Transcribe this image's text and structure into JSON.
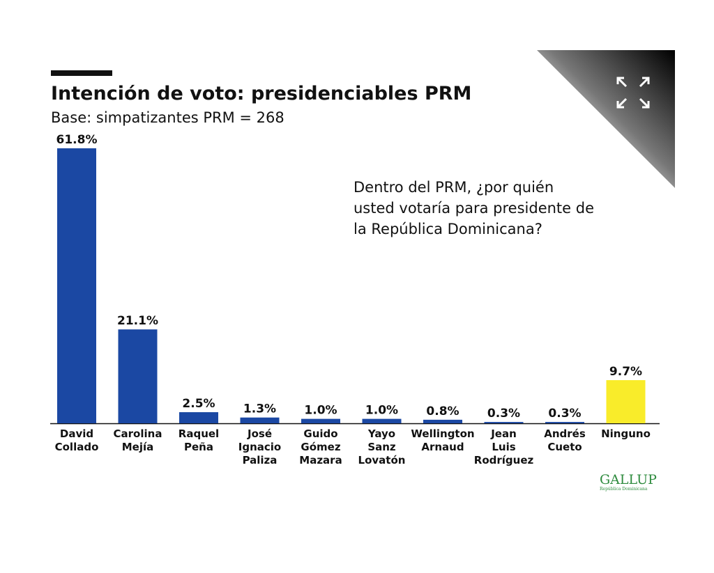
{
  "chart_data": {
    "type": "bar",
    "title": "Intención de voto: presidenciables PRM",
    "subtitle": "Base: simpatizantes PRM = 268",
    "annotation": "Dentro del PRM, ¿por quién usted votaría para presidente de la República Dominicana?",
    "categories": [
      "David Collado",
      "Carolina Mejía",
      "Raquel Peña",
      "José Ignacio Paliza",
      "Guido Gómez Mazara",
      "Yayo Sanz Lovatón",
      "Wellington Arnaud",
      "Jean Luis Rodríguez",
      "Andrés Cueto",
      "Ninguno"
    ],
    "values": [
      61.8,
      21.1,
      2.5,
      1.3,
      1.0,
      1.0,
      0.8,
      0.3,
      0.3,
      9.7
    ],
    "value_labels": [
      "61.8%",
      "21.1%",
      "2.5%",
      "1.3%",
      "1.0%",
      "1.0%",
      "0.8%",
      "0.3%",
      "0.3%",
      "9.7%"
    ],
    "colors": [
      "#1b48a3",
      "#1b48a3",
      "#1b48a3",
      "#1b48a3",
      "#1b48a3",
      "#1b48a3",
      "#1b48a3",
      "#1b48a3",
      "#1b48a3",
      "#f9ec2a"
    ]
  },
  "logo": {
    "name": "GALLUP",
    "subtitle": "República Dominicana"
  }
}
